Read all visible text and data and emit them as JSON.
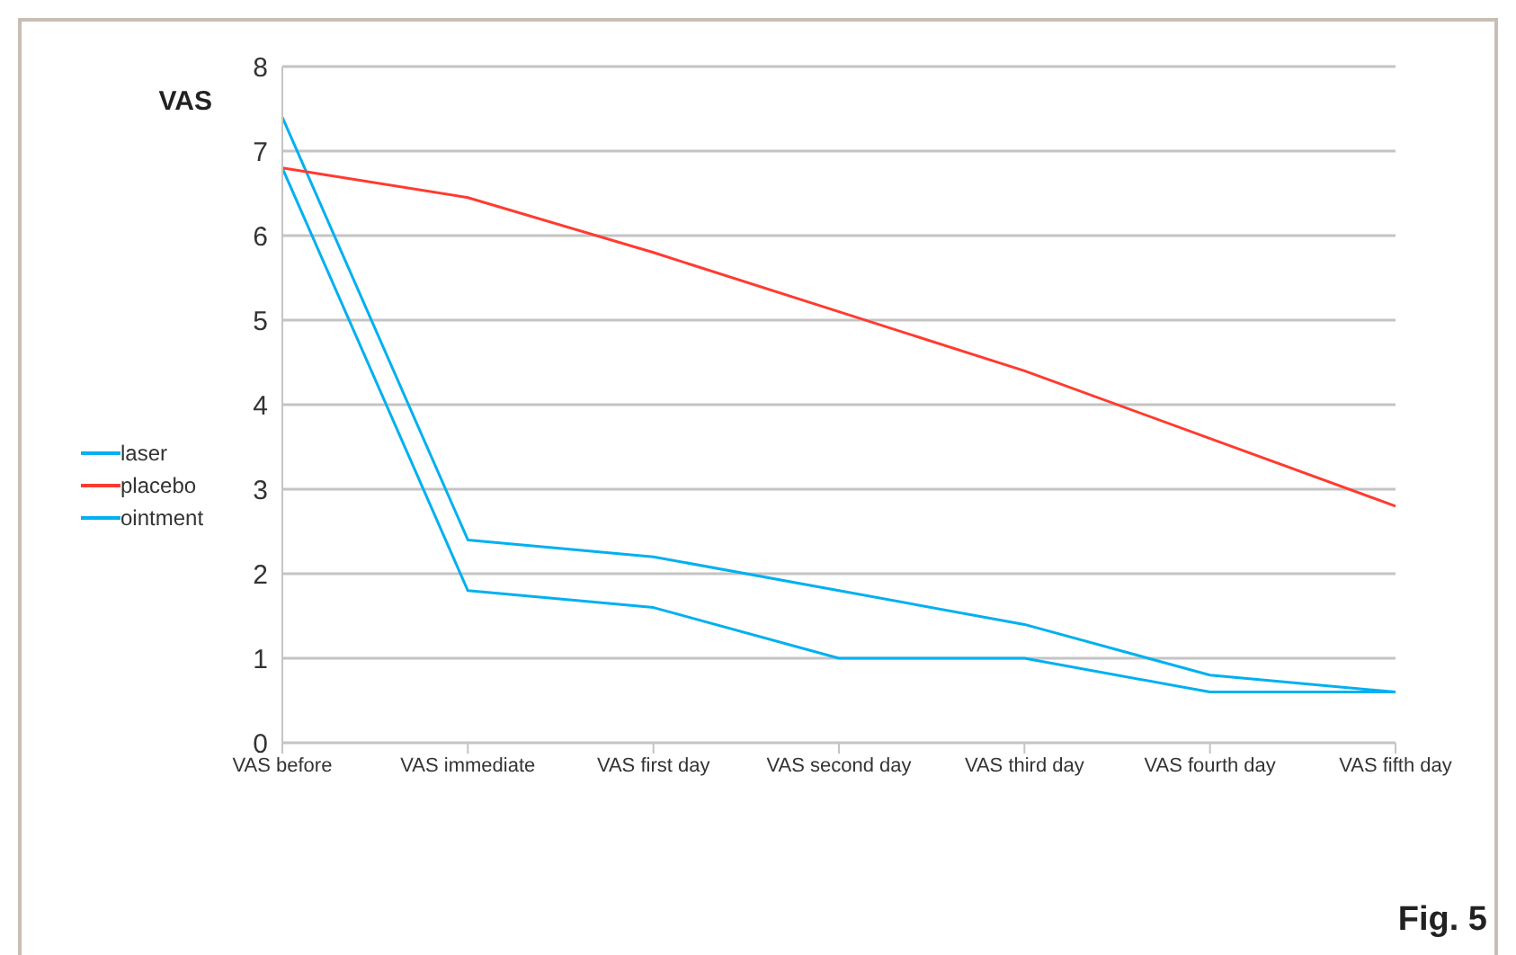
{
  "chart_data": {
    "type": "line",
    "ylabel": "VAS",
    "categories": [
      "VAS before",
      "VAS immediate",
      "VAS first day",
      "VAS second day",
      "VAS third day",
      "VAS fourth day",
      "VAS fifth day"
    ],
    "series": [
      {
        "name": "laser",
        "color": "#00b0f0",
        "values": [
          7.4,
          2.4,
          2.2,
          1.8,
          1.4,
          0.8,
          0.6
        ]
      },
      {
        "name": "placebo",
        "color": "#ff3b30",
        "values": [
          6.8,
          6.45,
          5.8,
          5.1,
          4.4,
          3.6,
          2.8
        ]
      },
      {
        "name": "ointment",
        "color": "#00b0f0",
        "values": [
          6.8,
          1.8,
          1.6,
          1.0,
          1.0,
          0.6,
          0.6
        ]
      }
    ],
    "ylim": [
      0,
      8
    ],
    "yticks": [
      0,
      1,
      2,
      3,
      4,
      5,
      6,
      7,
      8
    ],
    "grid": "y",
    "legend": "left",
    "marker": "none",
    "line_style": "solid",
    "annotations": [
      "Fig. 5"
    ]
  }
}
